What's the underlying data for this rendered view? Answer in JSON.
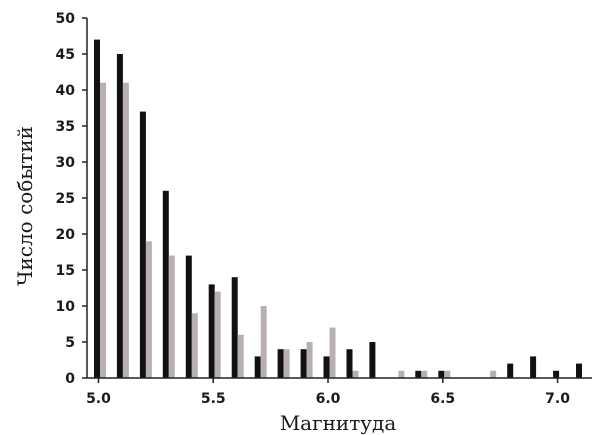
{
  "chart_data": {
    "type": "bar",
    "title": "",
    "xlabel": "Магнитуда",
    "ylabel": "Число событий",
    "ylim": [
      0,
      50
    ],
    "xlim": [
      4.95,
      7.15
    ],
    "bin_width": 0.1,
    "x_ticks": [
      5.0,
      5.5,
      6.0,
      6.5,
      7.0
    ],
    "x_tick_labels": [
      "5.0",
      "5.5",
      "6.0",
      "6.5",
      "7.0"
    ],
    "y_ticks": [
      0,
      5,
      10,
      15,
      20,
      25,
      30,
      35,
      40,
      45,
      50
    ],
    "y_tick_labels": [
      "0",
      "5",
      "10",
      "15",
      "20",
      "25",
      "30",
      "35",
      "40",
      "45",
      "50"
    ],
    "grid": false,
    "legend": "none",
    "x": [
      5.0,
      5.1,
      5.2,
      5.3,
      5.4,
      5.5,
      5.6,
      5.7,
      5.8,
      5.9,
      6.0,
      6.1,
      6.2,
      6.3,
      6.4,
      6.5,
      6.6,
      6.7,
      6.8,
      6.9,
      7.0,
      7.1
    ],
    "series": [
      {
        "color": "#111111",
        "values": [
          47,
          45,
          37,
          26,
          17,
          13,
          14,
          3,
          4,
          4,
          3,
          4,
          5,
          0,
          1,
          1,
          0,
          0,
          2,
          3,
          1,
          2
        ]
      },
      {
        "color": "#b8b0b0",
        "values": [
          41,
          41,
          19,
          17,
          9,
          12,
          6,
          10,
          4,
          5,
          7,
          1,
          0,
          1,
          1,
          1,
          0,
          1,
          0,
          0,
          0,
          0
        ]
      }
    ]
  }
}
